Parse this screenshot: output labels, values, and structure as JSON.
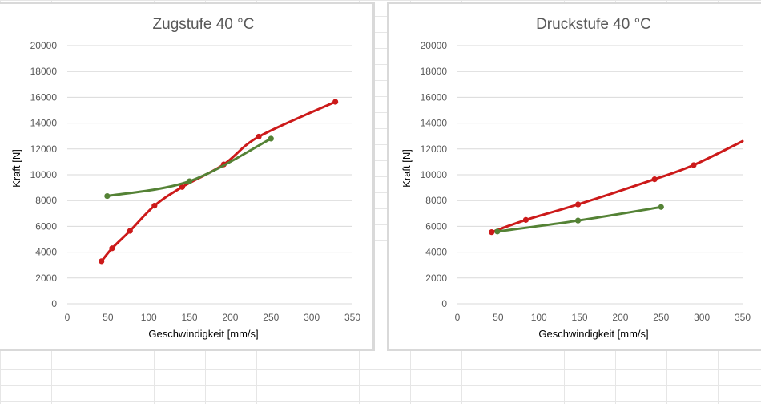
{
  "colors": {
    "series_red": "#cc1a1a",
    "series_green": "#548235",
    "gridline": "#d9d9d9",
    "text": "#595959"
  },
  "chart_data": [
    {
      "type": "line",
      "title": "Zugstufe 40 °C",
      "xlabel": "Geschwindigkeit [mm/s]",
      "ylabel": "Kraft [N]",
      "xlim": [
        0,
        350
      ],
      "ylim": [
        0,
        20000
      ],
      "xticks": [
        0,
        50,
        100,
        150,
        200,
        250,
        300,
        350
      ],
      "yticks": [
        0,
        2000,
        4000,
        6000,
        8000,
        10000,
        12000,
        14000,
        16000,
        18000,
        20000
      ],
      "grid": "horizontal",
      "series": [
        {
          "color": "#cc1a1a",
          "points": [
            [
              42,
              3300
            ],
            [
              55,
              4300
            ],
            [
              77,
              5650
            ],
            [
              107,
              7600
            ],
            [
              141,
              9050
            ],
            [
              192,
              10800
            ],
            [
              235,
              12950
            ],
            [
              329,
              15650
            ]
          ]
        },
        {
          "color": "#548235",
          "points": [
            [
              49,
              8350
            ],
            [
              150,
              9500
            ],
            [
              250,
              12800
            ]
          ]
        }
      ]
    },
    {
      "type": "line",
      "title": "Druckstufe 40 °C",
      "xlabel": "Geschwindigkeit [mm/s]",
      "ylabel": "Kraft [N]",
      "xlim": [
        0,
        350
      ],
      "ylim": [
        0,
        20000
      ],
      "xticks": [
        0,
        50,
        100,
        150,
        200,
        250,
        300,
        350
      ],
      "yticks": [
        0,
        2000,
        4000,
        6000,
        8000,
        10000,
        12000,
        14000,
        16000,
        18000,
        20000
      ],
      "grid": "horizontal",
      "series": [
        {
          "color": "#cc1a1a",
          "points": [
            [
              42,
              5550
            ],
            [
              84,
              6500
            ],
            [
              148,
              7700
            ],
            [
              242,
              9650
            ],
            [
              290,
              10750
            ],
            [
              350,
              12600
            ]
          ]
        },
        {
          "color": "#548235",
          "points": [
            [
              49,
              5600
            ],
            [
              148,
              6450
            ],
            [
              250,
              7500
            ]
          ]
        }
      ]
    }
  ]
}
